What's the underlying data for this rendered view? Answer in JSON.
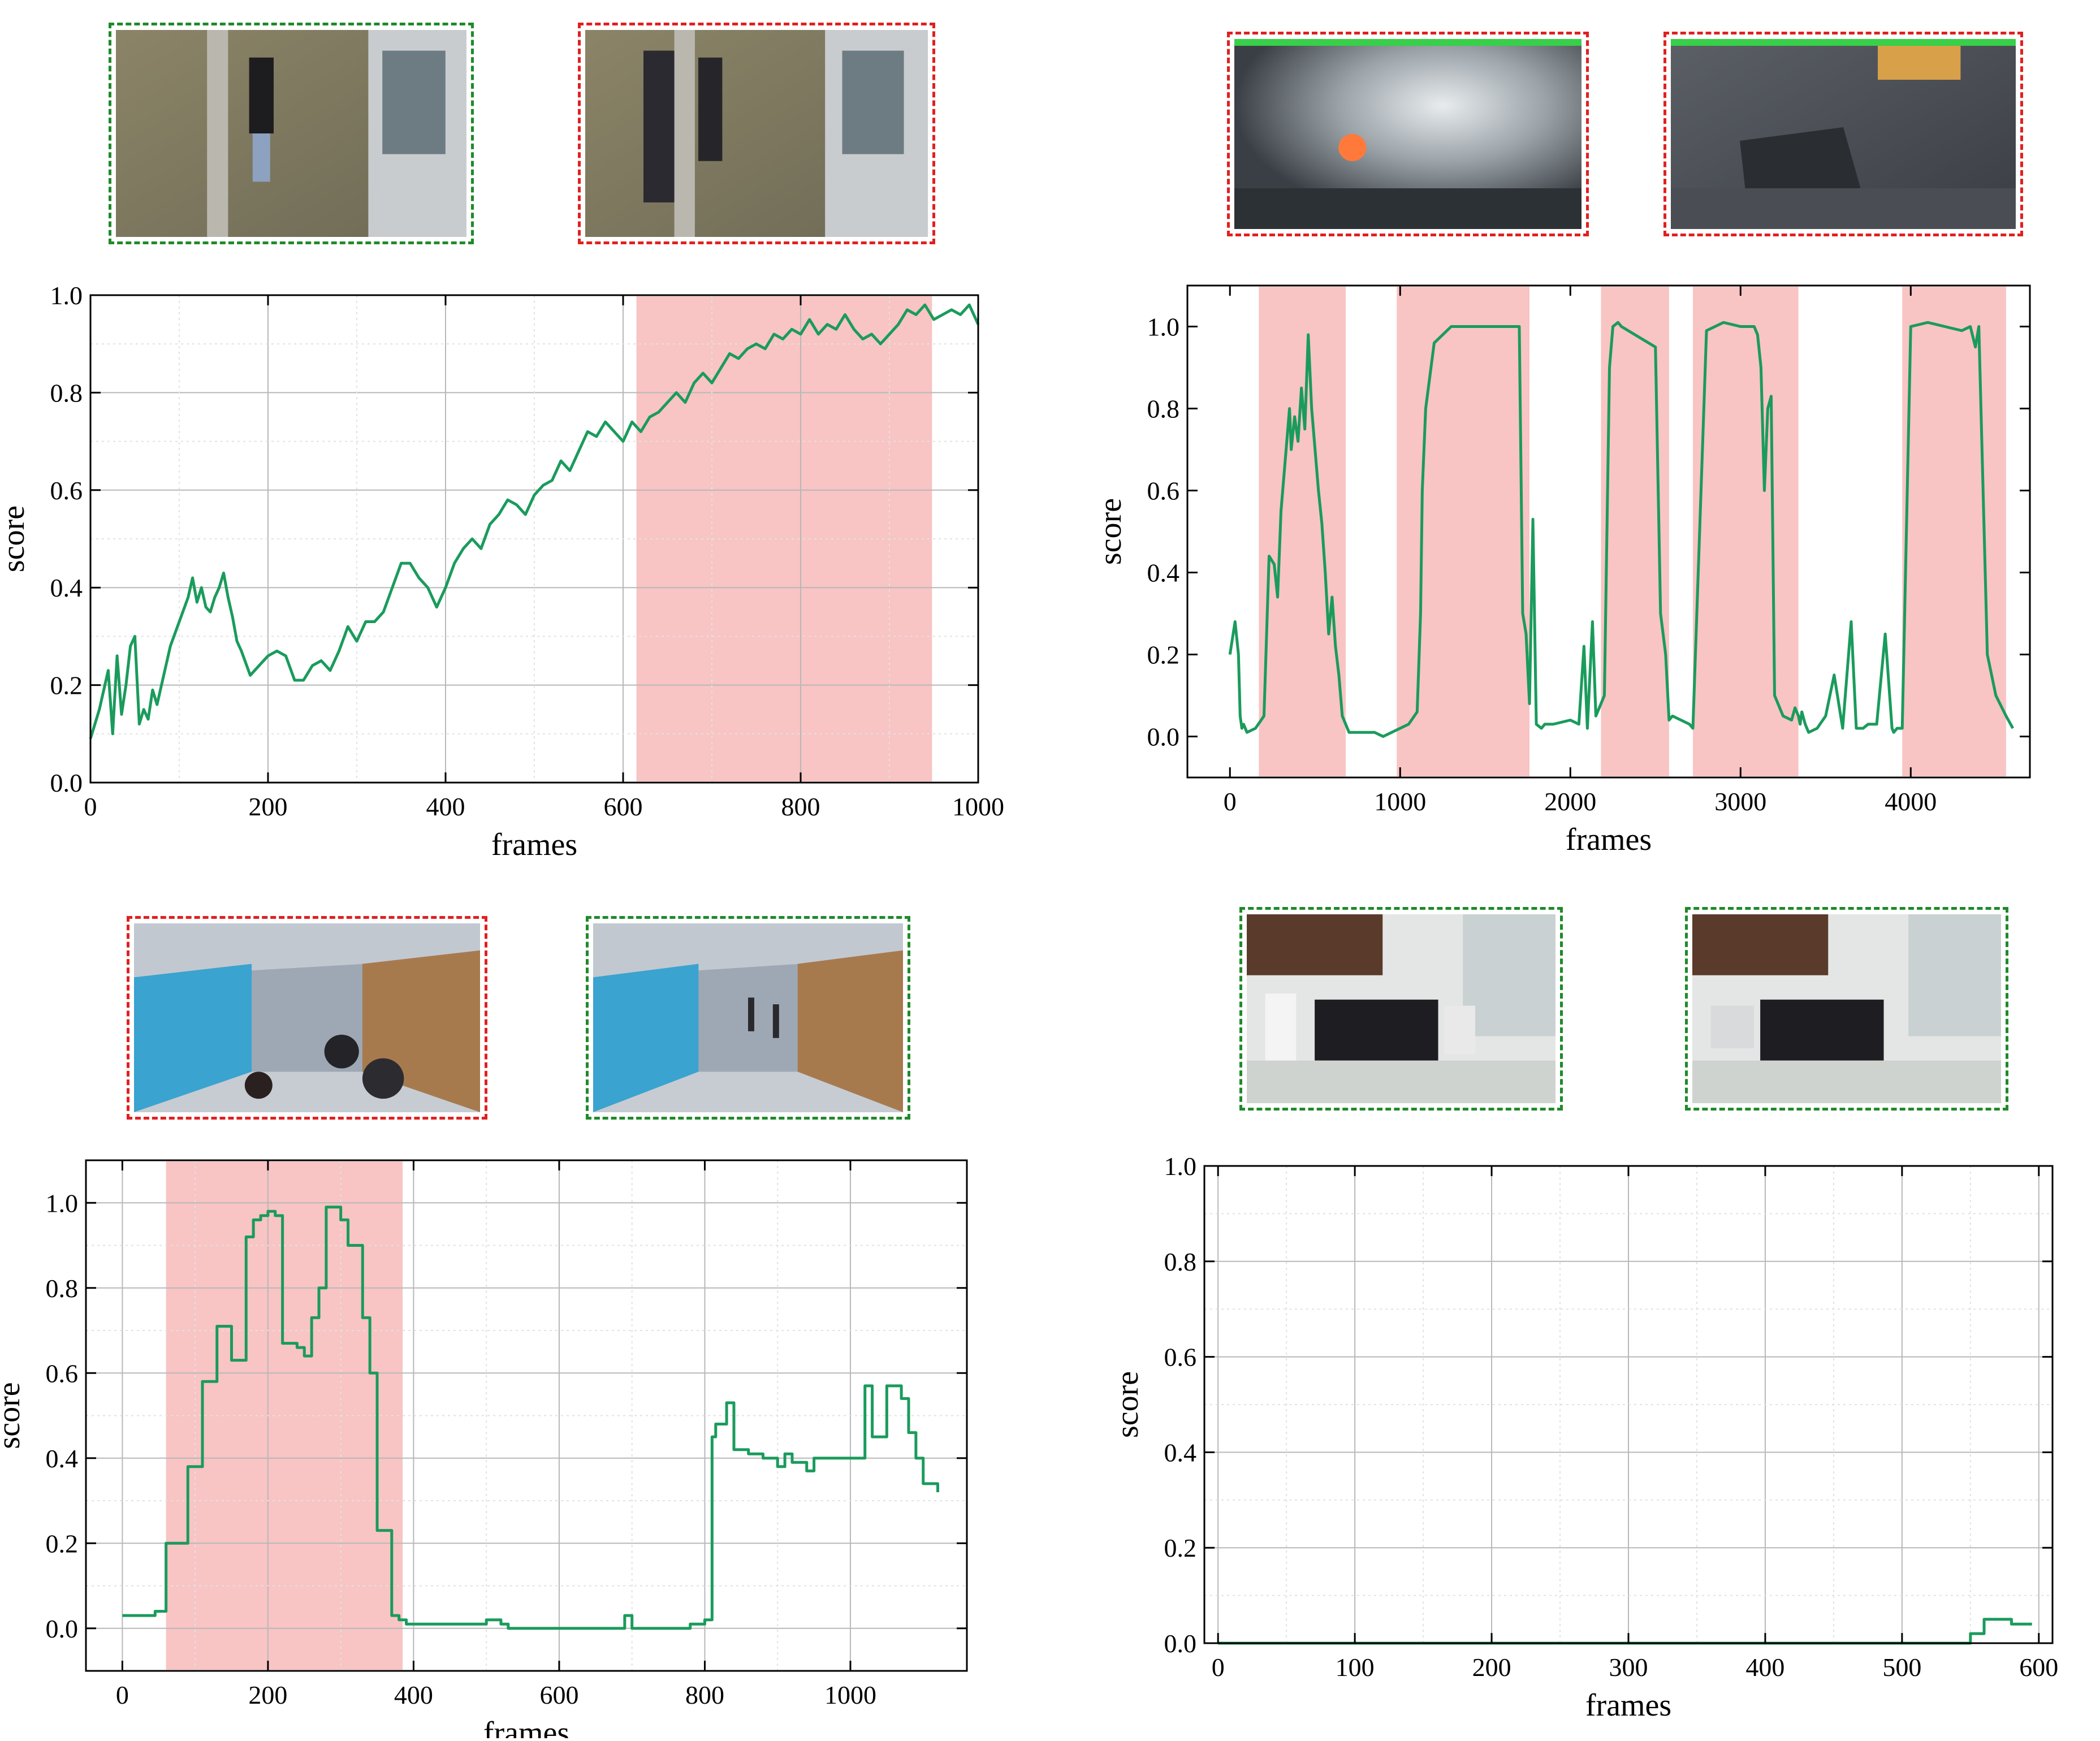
{
  "chart_data": [
    {
      "type": "line",
      "id": "a",
      "xlabel": "frames",
      "ylabel": "score",
      "xlim": [
        0,
        1000
      ],
      "ylim": [
        0,
        1.0
      ],
      "xticks": [
        0,
        200,
        400,
        600,
        800,
        1000
      ],
      "yticks": [
        0.0,
        0.2,
        0.4,
        0.6,
        0.8,
        1.0
      ],
      "ytick_labels": [
        "0.0",
        "0.2",
        "0.4",
        "0.6",
        "0.8",
        "1.0"
      ],
      "grid": true,
      "anomaly_ranges": [
        [
          615,
          948
        ]
      ],
      "series": [
        {
          "color": "#1a9b5c",
          "x": [
            0,
            10,
            20,
            25,
            30,
            35,
            40,
            45,
            50,
            55,
            60,
            65,
            70,
            75,
            80,
            85,
            90,
            100,
            110,
            115,
            120,
            125,
            130,
            135,
            140,
            145,
            150,
            155,
            160,
            165,
            170,
            180,
            190,
            200,
            210,
            220,
            230,
            240,
            250,
            260,
            270,
            280,
            290,
            300,
            310,
            320,
            330,
            340,
            350,
            360,
            370,
            380,
            390,
            400,
            410,
            420,
            430,
            440,
            450,
            460,
            470,
            480,
            490,
            500,
            510,
            520,
            530,
            540,
            550,
            560,
            570,
            580,
            590,
            600,
            610,
            620,
            630,
            640,
            650,
            660,
            670,
            680,
            690,
            700,
            710,
            720,
            730,
            740,
            750,
            760,
            770,
            780,
            790,
            800,
            810,
            820,
            830,
            840,
            850,
            860,
            870,
            880,
            890,
            900,
            910,
            920,
            930,
            940,
            950,
            960,
            970,
            980,
            990,
            1000
          ],
          "y": [
            0.09,
            0.15,
            0.23,
            0.1,
            0.26,
            0.14,
            0.2,
            0.28,
            0.3,
            0.12,
            0.15,
            0.13,
            0.19,
            0.16,
            0.2,
            0.24,
            0.28,
            0.33,
            0.38,
            0.42,
            0.37,
            0.4,
            0.36,
            0.35,
            0.38,
            0.4,
            0.43,
            0.38,
            0.34,
            0.29,
            0.27,
            0.22,
            0.24,
            0.26,
            0.27,
            0.26,
            0.21,
            0.21,
            0.24,
            0.25,
            0.23,
            0.27,
            0.32,
            0.29,
            0.33,
            0.33,
            0.35,
            0.4,
            0.45,
            0.45,
            0.42,
            0.4,
            0.36,
            0.4,
            0.45,
            0.48,
            0.5,
            0.48,
            0.53,
            0.55,
            0.58,
            0.57,
            0.55,
            0.59,
            0.61,
            0.62,
            0.66,
            0.64,
            0.68,
            0.72,
            0.71,
            0.74,
            0.72,
            0.7,
            0.74,
            0.72,
            0.75,
            0.76,
            0.78,
            0.8,
            0.78,
            0.82,
            0.84,
            0.82,
            0.85,
            0.88,
            0.87,
            0.89,
            0.9,
            0.89,
            0.92,
            0.91,
            0.93,
            0.92,
            0.95,
            0.92,
            0.94,
            0.93,
            0.96,
            0.93,
            0.91,
            0.92,
            0.9,
            0.92,
            0.94,
            0.97,
            0.96,
            0.98,
            0.95,
            0.96,
            0.97,
            0.96,
            0.98,
            0.94
          ]
        }
      ]
    },
    {
      "type": "line",
      "id": "b",
      "xlabel": "frames",
      "ylabel": "score",
      "xlim": [
        -250,
        4700
      ],
      "ylim": [
        -0.1,
        1.1
      ],
      "xticks": [
        0,
        1000,
        2000,
        3000,
        4000
      ],
      "yticks": [
        0.0,
        0.2,
        0.4,
        0.6,
        0.8,
        1.0
      ],
      "ytick_labels": [
        "0.0",
        "0.2",
        "0.4",
        "0.6",
        "0.8",
        "1.0"
      ],
      "grid": false,
      "anomaly_ranges": [
        [
          170,
          680
        ],
        [
          980,
          1760
        ],
        [
          2180,
          2580
        ],
        [
          2720,
          3340
        ],
        [
          3950,
          4560
        ]
      ],
      "series": [
        {
          "color": "#1a9b5c",
          "x": [
            0,
            30,
            50,
            60,
            70,
            80,
            90,
            100,
            150,
            200,
            230,
            260,
            280,
            300,
            320,
            340,
            350,
            360,
            380,
            400,
            420,
            440,
            460,
            480,
            500,
            520,
            540,
            560,
            580,
            600,
            620,
            640,
            660,
            680,
            700,
            750,
            800,
            850,
            900,
            950,
            1000,
            1050,
            1100,
            1120,
            1130,
            1150,
            1200,
            1300,
            1400,
            1500,
            1600,
            1700,
            1720,
            1740,
            1760,
            1780,
            1800,
            1830,
            1850,
            1900,
            2000,
            2050,
            2080,
            2100,
            2130,
            2150,
            2200,
            2230,
            2250,
            2280,
            2300,
            2500,
            2530,
            2560,
            2580,
            2600,
            2700,
            2720,
            2800,
            2900,
            3000,
            3080,
            3100,
            3120,
            3140,
            3160,
            3180,
            3200,
            3250,
            3300,
            3320,
            3340,
            3350,
            3360,
            3380,
            3400,
            3450,
            3500,
            3550,
            3600,
            3650,
            3680,
            3700,
            3720,
            3750,
            3800,
            3850,
            3890,
            3900,
            3920,
            3950,
            4000,
            4100,
            4200,
            4300,
            4350,
            4380,
            4400,
            4450,
            4500,
            4560,
            4600
          ],
          "y": [
            0.2,
            0.28,
            0.2,
            0.05,
            0.02,
            0.03,
            0.02,
            0.01,
            0.02,
            0.05,
            0.44,
            0.42,
            0.34,
            0.55,
            0.65,
            0.75,
            0.8,
            0.7,
            0.78,
            0.72,
            0.85,
            0.75,
            0.98,
            0.8,
            0.7,
            0.6,
            0.52,
            0.4,
            0.25,
            0.34,
            0.22,
            0.15,
            0.05,
            0.03,
            0.01,
            0.01,
            0.01,
            0.01,
            0.0,
            0.01,
            0.02,
            0.03,
            0.06,
            0.3,
            0.6,
            0.8,
            0.96,
            1.0,
            1.0,
            1.0,
            1.0,
            1.0,
            0.3,
            0.25,
            0.08,
            0.53,
            0.03,
            0.02,
            0.03,
            0.03,
            0.04,
            0.03,
            0.22,
            0.02,
            0.28,
            0.05,
            0.1,
            0.9,
            1.0,
            1.01,
            1.0,
            0.95,
            0.3,
            0.2,
            0.04,
            0.05,
            0.03,
            0.02,
            0.99,
            1.01,
            1.0,
            1.0,
            0.98,
            0.9,
            0.6,
            0.8,
            0.83,
            0.1,
            0.05,
            0.04,
            0.07,
            0.05,
            0.03,
            0.06,
            0.03,
            0.01,
            0.02,
            0.05,
            0.15,
            0.02,
            0.28,
            0.02,
            0.02,
            0.02,
            0.03,
            0.03,
            0.25,
            0.02,
            0.01,
            0.02,
            0.02,
            1.0,
            1.01,
            1.0,
            0.99,
            1.0,
            0.95,
            1.0,
            0.2,
            0.1,
            0.05,
            0.02
          ]
        }
      ]
    },
    {
      "type": "line",
      "id": "c",
      "xlabel": "frames",
      "ylabel": "score",
      "xlim": [
        -50,
        1160
      ],
      "ylim": [
        -0.1,
        1.1
      ],
      "xticks": [
        0,
        200,
        400,
        600,
        800,
        1000
      ],
      "yticks": [
        0.0,
        0.2,
        0.4,
        0.6,
        0.8,
        1.0
      ],
      "ytick_labels": [
        "0.0",
        "0.2",
        "0.4",
        "0.6",
        "0.8",
        "1.0"
      ],
      "grid": true,
      "anomaly_ranges": [
        [
          60,
          385
        ]
      ],
      "series": [
        {
          "color": "#1a9b5c",
          "step": true,
          "x": [
            0,
            20,
            30,
            45,
            60,
            80,
            90,
            100,
            110,
            130,
            140,
            150,
            170,
            180,
            190,
            200,
            210,
            220,
            240,
            250,
            260,
            270,
            280,
            290,
            300,
            310,
            320,
            330,
            340,
            350,
            360,
            370,
            380,
            390,
            400,
            420,
            440,
            460,
            480,
            500,
            510,
            520,
            530,
            540,
            560,
            580,
            600,
            620,
            640,
            660,
            680,
            690,
            700,
            710,
            720,
            740,
            760,
            780,
            800,
            810,
            815,
            820,
            830,
            840,
            850,
            860,
            870,
            880,
            890,
            900,
            910,
            920,
            930,
            940,
            950,
            960,
            970,
            980,
            990,
            1000,
            1010,
            1020,
            1030,
            1040,
            1050,
            1060,
            1070,
            1080,
            1090,
            1100,
            1120
          ],
          "y": [
            0.03,
            0.03,
            0.03,
            0.04,
            0.2,
            0.2,
            0.38,
            0.38,
            0.58,
            0.71,
            0.71,
            0.63,
            0.92,
            0.96,
            0.97,
            0.98,
            0.97,
            0.67,
            0.66,
            0.64,
            0.73,
            0.8,
            0.99,
            0.99,
            0.96,
            0.9,
            0.9,
            0.73,
            0.6,
            0.23,
            0.23,
            0.03,
            0.02,
            0.01,
            0.01,
            0.01,
            0.01,
            0.01,
            0.01,
            0.02,
            0.02,
            0.01,
            0.0,
            0.0,
            0.0,
            0.0,
            0.0,
            0.0,
            0.0,
            0.0,
            0.0,
            0.03,
            0.0,
            0.0,
            0.0,
            0.0,
            0.0,
            0.01,
            0.02,
            0.45,
            0.48,
            0.48,
            0.53,
            0.42,
            0.42,
            0.41,
            0.41,
            0.4,
            0.4,
            0.38,
            0.41,
            0.39,
            0.39,
            0.37,
            0.4,
            0.4,
            0.4,
            0.4,
            0.4,
            0.4,
            0.4,
            0.57,
            0.45,
            0.45,
            0.57,
            0.57,
            0.54,
            0.46,
            0.4,
            0.34,
            0.32
          ]
        }
      ]
    },
    {
      "type": "line",
      "id": "d",
      "xlabel": "frames",
      "ylabel": "score",
      "xlim": [
        -10,
        610
      ],
      "ylim": [
        0,
        1.0
      ],
      "xticks": [
        0,
        100,
        200,
        300,
        400,
        500,
        600
      ],
      "yticks": [
        0.0,
        0.2,
        0.4,
        0.6,
        0.8,
        1.0
      ],
      "ytick_labels": [
        "0.0",
        "0.2",
        "0.4",
        "0.6",
        "0.8",
        "1.0"
      ],
      "grid": true,
      "anomaly_ranges": [],
      "series": [
        {
          "color": "#1a9b5c",
          "step": true,
          "x": [
            0,
            100,
            200,
            300,
            400,
            500,
            540,
            550,
            560,
            570,
            580,
            595
          ],
          "y": [
            0.0,
            0.0,
            0.0,
            0.0,
            0.0,
            0.0,
            0.0,
            0.02,
            0.05,
            0.05,
            0.04,
            0.04
          ]
        }
      ]
    }
  ],
  "thumbnails": [
    {
      "panel": "a",
      "label": "normal-frame-a",
      "border_color": "#1f8a2a"
    },
    {
      "panel": "a",
      "label": "anomaly-frame-a",
      "border_color": "#e02020"
    },
    {
      "panel": "b",
      "label": "anomaly-frame-b1",
      "border_color": "#e02020"
    },
    {
      "panel": "b",
      "label": "anomaly-frame-b2",
      "border_color": "#e02020"
    },
    {
      "panel": "c",
      "label": "anomaly-frame-c",
      "border_color": "#e02020"
    },
    {
      "panel": "c",
      "label": "normal-frame-c",
      "border_color": "#1f8a2a"
    },
    {
      "panel": "d",
      "label": "normal-frame-d1",
      "border_color": "#1f8a2a"
    },
    {
      "panel": "d",
      "label": "normal-frame-d2",
      "border_color": "#1f8a2a"
    }
  ],
  "colors": {
    "line": "#1a9b5c",
    "anomaly_band": "#f8c4c4",
    "normal_border": "#1f8a2a",
    "anomaly_border": "#e02020"
  }
}
